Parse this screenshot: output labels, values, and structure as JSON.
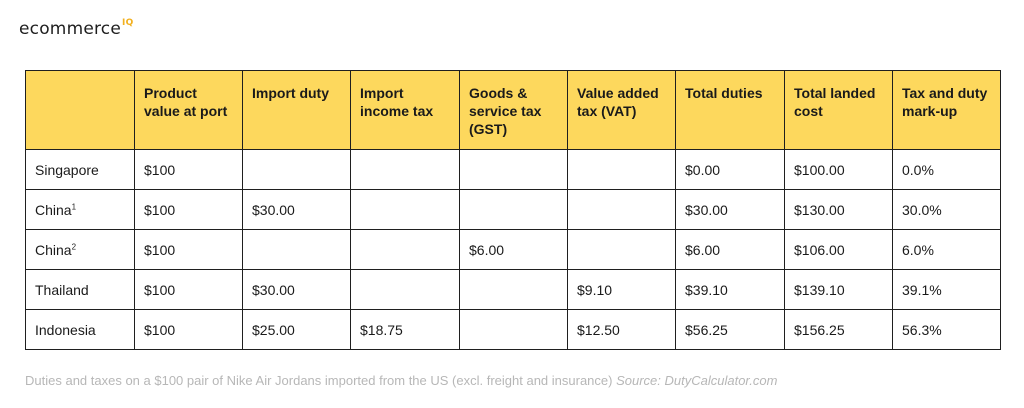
{
  "logo": {
    "text": "ecommerce",
    "superscript": "IQ"
  },
  "table": {
    "headers": [
      "",
      "Product value at port",
      "Import duty",
      "Import income tax",
      "Goods & service tax (GST)",
      "Value added tax (VAT)",
      "Total duties",
      "Total landed cost",
      "Tax and duty mark-up"
    ],
    "rows": [
      {
        "country": "Singapore",
        "note": "",
        "cells": [
          "$100",
          "",
          "",
          "",
          "",
          "$0.00",
          "$100.00",
          "0.0%"
        ]
      },
      {
        "country": "China",
        "note": "1",
        "cells": [
          "$100",
          "$30.00",
          "",
          "",
          "",
          "$30.00",
          "$130.00",
          "30.0%"
        ]
      },
      {
        "country": "China",
        "note": "2",
        "cells": [
          "$100",
          "",
          "",
          "$6.00",
          "",
          "$6.00",
          "$106.00",
          "6.0%"
        ]
      },
      {
        "country": "Thailand",
        "note": "",
        "cells": [
          "$100",
          "$30.00",
          "",
          "",
          "$9.10",
          "$39.10",
          "$139.10",
          "39.1%"
        ]
      },
      {
        "country": "Indonesia",
        "note": "",
        "cells": [
          "$100",
          "$25.00",
          "$18.75",
          "",
          "$12.50",
          "$56.25",
          "$156.25",
          "56.3%"
        ]
      }
    ]
  },
  "caption": {
    "text": "Duties and taxes on a $100 pair of Nike Air Jordans imported from the US (excl. freight and insurance)",
    "source": "Source: DutyCalculator.com"
  },
  "colors": {
    "header_bg": "#fdd85d",
    "logo_accent": "#f2b01e",
    "caption": "#b7b7b7"
  }
}
